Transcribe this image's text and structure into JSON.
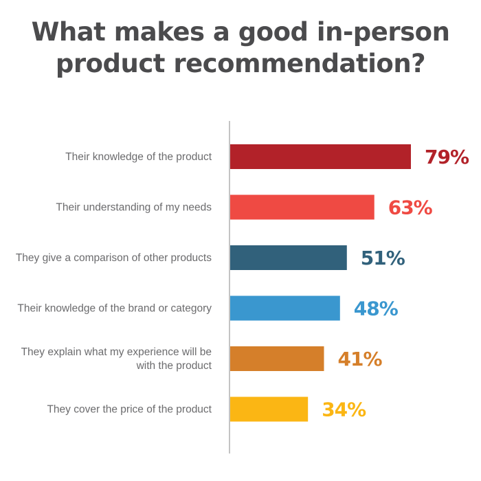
{
  "chart_data": {
    "type": "bar",
    "orientation": "horizontal",
    "title_lines": [
      "What makes a good in-person",
      "product recommendation?"
    ],
    "categories": [
      [
        "Their knowledge of the product"
      ],
      [
        "Their understanding of my needs"
      ],
      [
        "They give a comparison of other products"
      ],
      [
        "Their knowledge of the brand or category"
      ],
      [
        "They explain what my experience will be",
        "with the product"
      ],
      [
        "They cover the price of the product"
      ]
    ],
    "values": [
      79,
      63,
      51,
      48,
      41,
      34
    ],
    "value_labels": [
      "79%",
      "63%",
      "51%",
      "48%",
      "41%",
      "34%"
    ],
    "colors": [
      "#b22229",
      "#ef4a43",
      "#31617b",
      "#3a97cf",
      "#d57f2a",
      "#fbb614"
    ],
    "xlim": [
      0,
      100
    ],
    "grid": false,
    "legend": "none"
  }
}
